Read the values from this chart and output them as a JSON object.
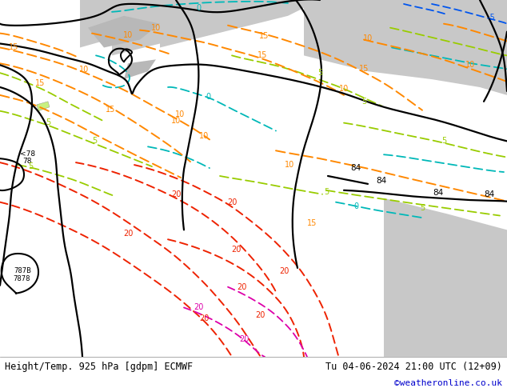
{
  "title_left": "Height/Temp. 925 hPa [gdpm] ECMWF",
  "title_right": "Tu 04-06-2024 21:00 UTC (12+09)",
  "credit": "©weatheronline.co.uk",
  "fig_width": 6.34,
  "fig_height": 4.9,
  "dpi": 100,
  "land_color": "#c8f080",
  "sea_color": "#c8c8c8",
  "mountain_color": "#b8b8b8"
}
